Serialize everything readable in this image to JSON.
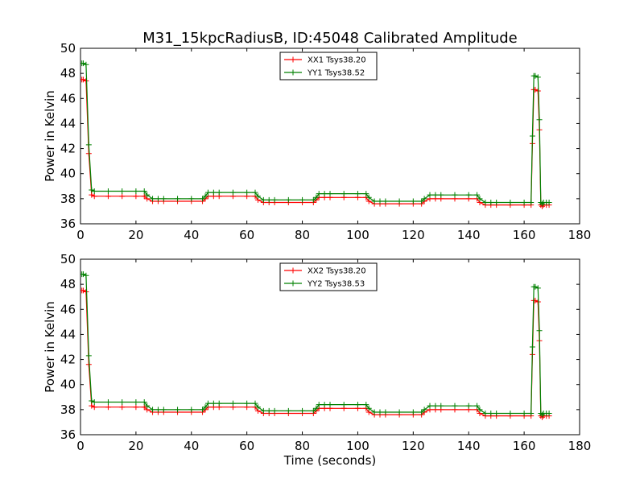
{
  "figure": {
    "title": "M31_15kpcRadiusB, ID:45048 Calibrated Amplitude",
    "xlabel": "Time (seconds)"
  },
  "chart_data": [
    {
      "type": "line",
      "ylabel": "Power in Kelvin",
      "xlim": [
        0,
        180
      ],
      "ylim": [
        36,
        50
      ],
      "xticks": [
        0,
        20,
        40,
        60,
        80,
        100,
        120,
        140,
        160,
        180
      ],
      "yticks": [
        36,
        38,
        40,
        42,
        44,
        46,
        48,
        50
      ],
      "legend_position": "top-center",
      "grid": false,
      "series": [
        {
          "name": "XX1 Tsys38.20",
          "color": "#ff0000",
          "marker": "+",
          "x": [
            0.5,
            1,
            2,
            3,
            4,
            5,
            10,
            15,
            20,
            23,
            24,
            26,
            28,
            30,
            35,
            40,
            44,
            45,
            46,
            48,
            50,
            55,
            60,
            63,
            64,
            66,
            68,
            70,
            75,
            80,
            84,
            85,
            86,
            88,
            90,
            95,
            100,
            103,
            104,
            106,
            108,
            110,
            115,
            120,
            123,
            124,
            126,
            128,
            130,
            135,
            140,
            143,
            144,
            146,
            148,
            150,
            155,
            160,
            162.5,
            163,
            163.5,
            164,
            165,
            165.5,
            166,
            166.5,
            167,
            168,
            169
          ],
          "y": [
            47.5,
            47.5,
            47.4,
            41.6,
            38.3,
            38.2,
            38.2,
            38.2,
            38.2,
            38.2,
            38.0,
            37.8,
            37.8,
            37.8,
            37.8,
            37.8,
            37.8,
            38.0,
            38.2,
            38.2,
            38.2,
            38.2,
            38.2,
            38.2,
            37.9,
            37.7,
            37.7,
            37.7,
            37.7,
            37.7,
            37.7,
            37.9,
            38.1,
            38.1,
            38.1,
            38.1,
            38.1,
            38.1,
            37.8,
            37.6,
            37.6,
            37.6,
            37.6,
            37.6,
            37.6,
            37.8,
            38.0,
            38.0,
            38.0,
            38.0,
            38.0,
            38.0,
            37.7,
            37.5,
            37.5,
            37.5,
            37.5,
            37.5,
            37.5,
            42.4,
            46.7,
            46.7,
            46.6,
            43.5,
            37.5,
            37.4,
            37.5,
            37.5,
            37.5
          ]
        },
        {
          "name": "YY1 Tsys38.52",
          "color": "#008000",
          "marker": "+",
          "x": [
            0.5,
            1,
            2,
            3,
            4,
            5,
            10,
            15,
            20,
            23,
            24,
            26,
            28,
            30,
            35,
            40,
            44,
            45,
            46,
            48,
            50,
            55,
            60,
            63,
            64,
            66,
            68,
            70,
            75,
            80,
            84,
            85,
            86,
            88,
            90,
            95,
            100,
            103,
            104,
            106,
            108,
            110,
            115,
            120,
            123,
            124,
            126,
            128,
            130,
            135,
            140,
            143,
            144,
            146,
            148,
            150,
            155,
            160,
            162.5,
            163,
            163.5,
            164,
            165,
            165.5,
            166,
            166.5,
            167,
            168,
            169
          ],
          "y": [
            48.8,
            48.8,
            48.7,
            42.3,
            38.7,
            38.6,
            38.6,
            38.6,
            38.6,
            38.6,
            38.3,
            38.0,
            38.0,
            38.0,
            38.0,
            38.0,
            38.0,
            38.2,
            38.5,
            38.5,
            38.5,
            38.5,
            38.5,
            38.5,
            38.2,
            37.9,
            37.9,
            37.9,
            37.9,
            37.9,
            37.9,
            38.1,
            38.4,
            38.4,
            38.4,
            38.4,
            38.4,
            38.4,
            38.1,
            37.8,
            37.8,
            37.8,
            37.8,
            37.8,
            37.8,
            38.0,
            38.3,
            38.3,
            38.3,
            38.3,
            38.3,
            38.3,
            38.0,
            37.7,
            37.7,
            37.7,
            37.7,
            37.7,
            37.7,
            43.0,
            47.8,
            47.8,
            47.7,
            44.3,
            37.7,
            37.6,
            37.7,
            37.7,
            37.7
          ]
        }
      ]
    },
    {
      "type": "line",
      "ylabel": "Power in Kelvin",
      "xlim": [
        0,
        180
      ],
      "ylim": [
        36,
        50
      ],
      "xticks": [
        0,
        20,
        40,
        60,
        80,
        100,
        120,
        140,
        160,
        180
      ],
      "yticks": [
        36,
        38,
        40,
        42,
        44,
        46,
        48,
        50
      ],
      "legend_position": "top-center",
      "grid": false,
      "series": [
        {
          "name": "XX2 Tsys38.20",
          "color": "#ff0000",
          "marker": "+",
          "x": [
            0.5,
            1,
            2,
            3,
            4,
            5,
            10,
            15,
            20,
            23,
            24,
            26,
            28,
            30,
            35,
            40,
            44,
            45,
            46,
            48,
            50,
            55,
            60,
            63,
            64,
            66,
            68,
            70,
            75,
            80,
            84,
            85,
            86,
            88,
            90,
            95,
            100,
            103,
            104,
            106,
            108,
            110,
            115,
            120,
            123,
            124,
            126,
            128,
            130,
            135,
            140,
            143,
            144,
            146,
            148,
            150,
            155,
            160,
            162.5,
            163,
            163.5,
            164,
            165,
            165.5,
            166,
            166.5,
            167,
            168,
            169
          ],
          "y": [
            47.5,
            47.5,
            47.4,
            41.6,
            38.3,
            38.2,
            38.2,
            38.2,
            38.2,
            38.2,
            38.0,
            37.8,
            37.8,
            37.8,
            37.8,
            37.8,
            37.8,
            38.0,
            38.2,
            38.2,
            38.2,
            38.2,
            38.2,
            38.2,
            37.9,
            37.7,
            37.7,
            37.7,
            37.7,
            37.7,
            37.7,
            37.9,
            38.1,
            38.1,
            38.1,
            38.1,
            38.1,
            38.1,
            37.8,
            37.6,
            37.6,
            37.6,
            37.6,
            37.6,
            37.6,
            37.8,
            38.0,
            38.0,
            38.0,
            38.0,
            38.0,
            38.0,
            37.7,
            37.5,
            37.5,
            37.5,
            37.5,
            37.5,
            37.5,
            42.4,
            46.7,
            46.7,
            46.6,
            43.5,
            37.5,
            37.4,
            37.5,
            37.5,
            37.5
          ]
        },
        {
          "name": "YY2 Tsys38.53",
          "color": "#008000",
          "marker": "+",
          "x": [
            0.5,
            1,
            2,
            3,
            4,
            5,
            10,
            15,
            20,
            23,
            24,
            26,
            28,
            30,
            35,
            40,
            44,
            45,
            46,
            48,
            50,
            55,
            60,
            63,
            64,
            66,
            68,
            70,
            75,
            80,
            84,
            85,
            86,
            88,
            90,
            95,
            100,
            103,
            104,
            106,
            108,
            110,
            115,
            120,
            123,
            124,
            126,
            128,
            130,
            135,
            140,
            143,
            144,
            146,
            148,
            150,
            155,
            160,
            162.5,
            163,
            163.5,
            164,
            165,
            165.5,
            166,
            166.5,
            167,
            168,
            169
          ],
          "y": [
            48.8,
            48.8,
            48.7,
            42.3,
            38.7,
            38.6,
            38.6,
            38.6,
            38.6,
            38.6,
            38.3,
            38.0,
            38.0,
            38.0,
            38.0,
            38.0,
            38.0,
            38.2,
            38.5,
            38.5,
            38.5,
            38.5,
            38.5,
            38.5,
            38.2,
            37.9,
            37.9,
            37.9,
            37.9,
            37.9,
            37.9,
            38.1,
            38.4,
            38.4,
            38.4,
            38.4,
            38.4,
            38.4,
            38.1,
            37.8,
            37.8,
            37.8,
            37.8,
            37.8,
            37.8,
            38.0,
            38.3,
            38.3,
            38.3,
            38.3,
            38.3,
            38.3,
            38.0,
            37.7,
            37.7,
            37.7,
            37.7,
            37.7,
            37.7,
            43.0,
            47.8,
            47.8,
            47.7,
            44.3,
            37.7,
            37.6,
            37.7,
            37.7,
            37.7
          ]
        }
      ]
    }
  ]
}
